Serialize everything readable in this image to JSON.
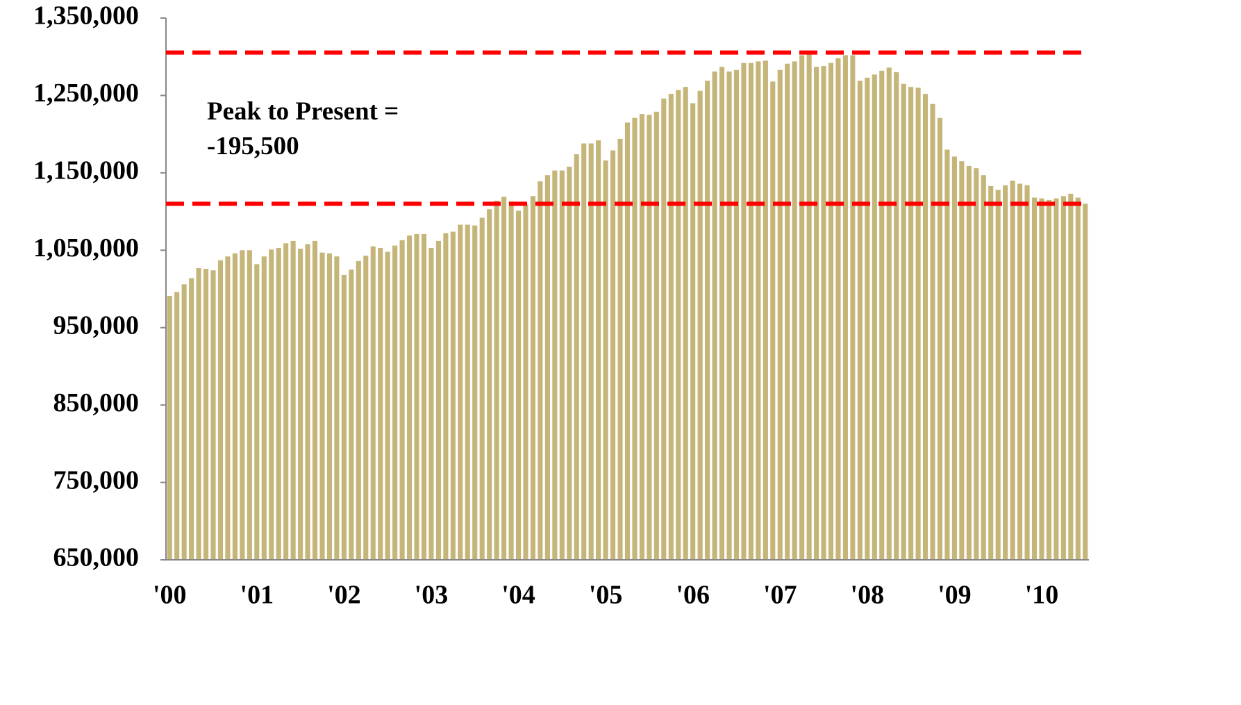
{
  "chart_data": {
    "type": "bar",
    "color": "#c5b578",
    "categories": [
      "'00",
      null,
      null,
      null,
      null,
      null,
      null,
      null,
      null,
      null,
      null,
      null,
      "'01",
      null,
      null,
      null,
      null,
      null,
      null,
      null,
      null,
      null,
      null,
      null,
      "'02",
      null,
      null,
      null,
      null,
      null,
      null,
      null,
      null,
      null,
      null,
      null,
      "'03",
      null,
      null,
      null,
      null,
      null,
      null,
      null,
      null,
      null,
      null,
      null,
      "'04",
      null,
      null,
      null,
      null,
      null,
      null,
      null,
      null,
      null,
      null,
      null,
      "'05",
      null,
      null,
      null,
      null,
      null,
      null,
      null,
      null,
      null,
      null,
      null,
      "'06",
      null,
      null,
      null,
      null,
      null,
      null,
      null,
      null,
      null,
      null,
      null,
      "'07",
      null,
      null,
      null,
      null,
      null,
      null,
      null,
      null,
      null,
      null,
      null,
      "'08",
      null,
      null,
      null,
      null,
      null,
      null,
      null,
      null,
      null,
      null,
      null,
      "'09",
      null,
      null,
      null,
      null,
      null,
      null,
      null,
      null,
      null,
      null,
      null,
      "'10",
      null,
      null,
      null,
      null,
      null,
      null
    ],
    "values": [
      991000,
      996000,
      1006000,
      1014000,
      1027000,
      1026000,
      1024000,
      1037000,
      1042000,
      1046000,
      1050000,
      1050000,
      1032000,
      1042000,
      1051000,
      1053000,
      1059000,
      1062000,
      1052000,
      1058000,
      1062000,
      1047000,
      1046000,
      1042000,
      1018000,
      1025000,
      1036000,
      1043000,
      1055000,
      1053000,
      1048000,
      1056000,
      1063000,
      1069000,
      1071000,
      1071000,
      1053000,
      1062000,
      1072000,
      1074000,
      1083000,
      1083000,
      1082000,
      1092000,
      1103000,
      1114000,
      1119000,
      1113000,
      1101000,
      1109000,
      1120000,
      1139000,
      1147000,
      1153000,
      1153000,
      1158000,
      1174000,
      1188000,
      1188000,
      1192000,
      1166000,
      1179000,
      1194000,
      1215000,
      1221000,
      1226000,
      1225000,
      1229000,
      1246000,
      1252000,
      1257000,
      1261000,
      1240000,
      1256000,
      1269000,
      1281000,
      1287000,
      1281000,
      1283000,
      1292000,
      1292000,
      1294000,
      1295000,
      1268000,
      1283000,
      1291000,
      1294000,
      1302000,
      1305500,
      1287000,
      1288000,
      1292000,
      1298000,
      1302000,
      1302000,
      1269000,
      1273000,
      1277000,
      1282000,
      1286000,
      1280000,
      1265000,
      1261000,
      1260000,
      1252000,
      1239000,
      1221000,
      1180000,
      1171000,
      1165000,
      1159000,
      1156000,
      1147000,
      1133000,
      1128000,
      1134000,
      1140000,
      1136000,
      1134000,
      1118000,
      1117000,
      1115000,
      1117000,
      1120000,
      1123000,
      1118000,
      1110000
    ],
    "ylim": [
      650000,
      1350000
    ],
    "yticks": [
      {
        "value": 650000,
        "label": "650,000"
      },
      {
        "value": 750000,
        "label": "750,000"
      },
      {
        "value": 850000,
        "label": "850,000"
      },
      {
        "value": 950000,
        "label": "950,000"
      },
      {
        "value": 1050000,
        "label": "1,050,000"
      },
      {
        "value": 1150000,
        "label": "1,150,000"
      },
      {
        "value": 1250000,
        "label": "1,250,000"
      },
      {
        "value": 1350000,
        "label": "1,350,000"
      }
    ],
    "reference_lines": [
      {
        "value": 1305500,
        "color": "#ff0000"
      },
      {
        "value": 1110000,
        "color": "#ff0000"
      }
    ],
    "annotation": [
      "Peak to Present =",
      "-195,500"
    ],
    "grid": false
  }
}
